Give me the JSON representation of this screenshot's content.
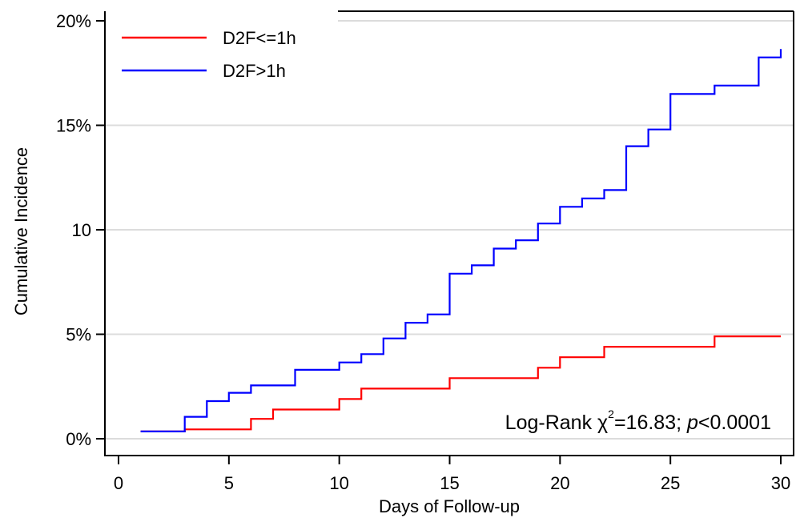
{
  "chart_data": {
    "type": "line",
    "step": true,
    "xlabel": "Days of Follow-up",
    "ylabel": "Cumulative Incidence",
    "xlim": [
      0,
      30
    ],
    "ylim": [
      0,
      20
    ],
    "x_ticks": [
      0,
      5,
      10,
      15,
      20,
      25,
      30
    ],
    "x_tick_labels": [
      "0",
      "5",
      "10",
      "15",
      "20",
      "25",
      "30"
    ],
    "y_ticks": [
      0,
      5,
      10,
      15,
      20
    ],
    "y_tick_labels": [
      "0%",
      "5%",
      "10",
      "15%",
      "20%"
    ],
    "grid": "horizontal",
    "legend_position": "top-left",
    "annotation": {
      "prefix": "Log-Rank ",
      "chi": "χ",
      "sup": "2",
      "stat": "=16.83; ",
      "p": "p",
      "pval": "<0.0001"
    },
    "series": [
      {
        "name": "D2F<=1h",
        "color": "#ff0000",
        "points": [
          [
            1,
            0.35
          ],
          [
            3,
            0.35
          ],
          [
            3,
            0.45
          ],
          [
            6,
            0.45
          ],
          [
            6,
            0.95
          ],
          [
            7,
            0.95
          ],
          [
            7,
            1.4
          ],
          [
            10,
            1.4
          ],
          [
            10,
            1.9
          ],
          [
            11,
            1.9
          ],
          [
            11,
            2.4
          ],
          [
            15,
            2.4
          ],
          [
            15,
            2.9
          ],
          [
            19,
            2.9
          ],
          [
            19,
            3.4
          ],
          [
            20,
            3.4
          ],
          [
            20,
            3.9
          ],
          [
            22,
            3.9
          ],
          [
            22,
            4.4
          ],
          [
            27,
            4.4
          ],
          [
            27,
            4.9
          ],
          [
            30,
            4.9
          ]
        ]
      },
      {
        "name": "D2F>1h",
        "color": "#0000ff",
        "points": [
          [
            1,
            0.35
          ],
          [
            3,
            0.35
          ],
          [
            3,
            1.05
          ],
          [
            4,
            1.05
          ],
          [
            4,
            1.8
          ],
          [
            5,
            1.8
          ],
          [
            5,
            2.2
          ],
          [
            6,
            2.2
          ],
          [
            6,
            2.55
          ],
          [
            8,
            2.55
          ],
          [
            8,
            3.3
          ],
          [
            10,
            3.3
          ],
          [
            10,
            3.65
          ],
          [
            11,
            3.65
          ],
          [
            11,
            4.05
          ],
          [
            12,
            4.05
          ],
          [
            12,
            4.8
          ],
          [
            13,
            4.8
          ],
          [
            13,
            5.55
          ],
          [
            14,
            5.55
          ],
          [
            14,
            5.95
          ],
          [
            15,
            5.95
          ],
          [
            15,
            7.9
          ],
          [
            16,
            7.9
          ],
          [
            16,
            8.3
          ],
          [
            17,
            8.3
          ],
          [
            17,
            9.1
          ],
          [
            18,
            9.1
          ],
          [
            18,
            9.5
          ],
          [
            19,
            9.5
          ],
          [
            19,
            10.3
          ],
          [
            20,
            10.3
          ],
          [
            20,
            11.1
          ],
          [
            21,
            11.1
          ],
          [
            21,
            11.5
          ],
          [
            22,
            11.5
          ],
          [
            22,
            11.9
          ],
          [
            23,
            11.9
          ],
          [
            23,
            14.0
          ],
          [
            24,
            14.0
          ],
          [
            24,
            14.8
          ],
          [
            25,
            14.8
          ],
          [
            25,
            16.5
          ],
          [
            27,
            16.5
          ],
          [
            27,
            16.9
          ],
          [
            29,
            16.9
          ],
          [
            29,
            18.25
          ],
          [
            30,
            18.25
          ],
          [
            30,
            18.65
          ]
        ]
      }
    ]
  }
}
